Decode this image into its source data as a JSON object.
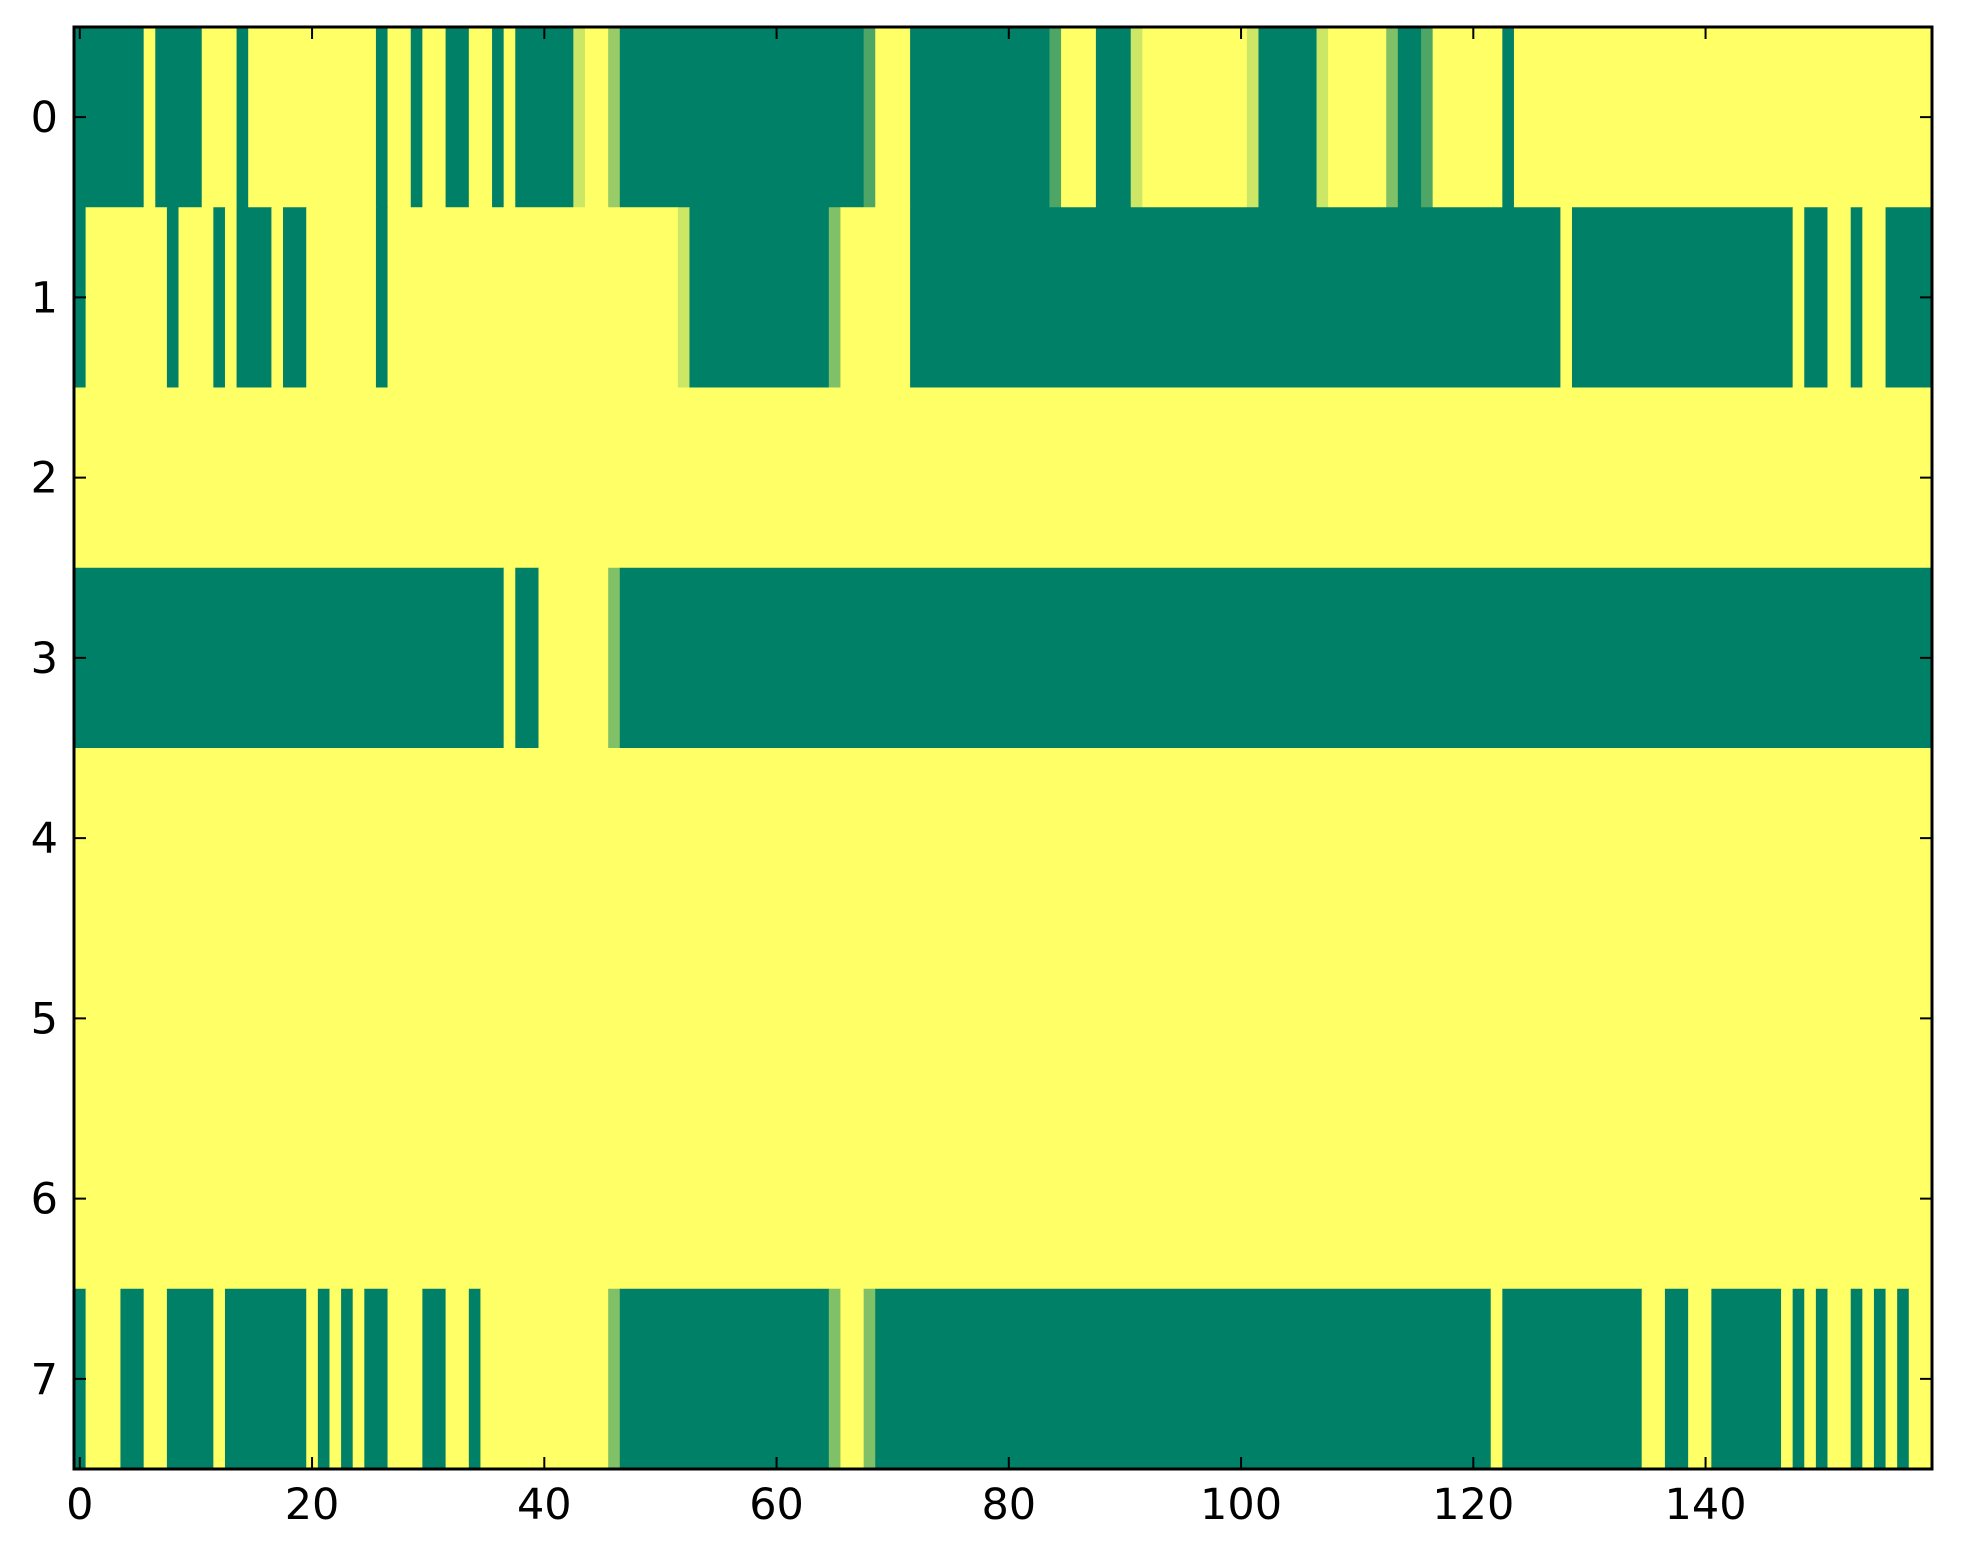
{
  "chart_data": {
    "type": "heatmap",
    "colormap": "summer",
    "colors": {
      "low": "#008066",
      "high": "#ffff66"
    },
    "xlim": [
      -0.5,
      159.5
    ],
    "ylim": [
      7.5,
      -0.5
    ],
    "xticks": [
      0,
      20,
      40,
      60,
      80,
      100,
      120,
      140
    ],
    "yticks": [
      0,
      1,
      2,
      3,
      4,
      5,
      6,
      7
    ],
    "x_tick_labels": [
      "0",
      "20",
      "40",
      "60",
      "80",
      "100",
      "120",
      "140"
    ],
    "y_tick_labels": [
      "0",
      "1",
      "2",
      "3",
      "4",
      "5",
      "6",
      "7"
    ],
    "n_columns": 160,
    "rows": [
      [
        [
          0,
          6,
          0
        ],
        [
          6,
          7,
          1
        ],
        [
          7,
          11,
          0
        ],
        [
          11,
          14,
          1
        ],
        [
          14,
          15,
          0
        ],
        [
          15,
          26,
          1
        ],
        [
          26,
          27,
          0
        ],
        [
          27,
          29,
          1
        ],
        [
          29,
          30,
          0
        ],
        [
          30,
          32,
          1
        ],
        [
          32,
          34,
          0
        ],
        [
          34,
          36,
          1
        ],
        [
          36,
          37,
          0
        ],
        [
          37,
          38,
          1
        ],
        [
          38,
          43,
          0
        ],
        [
          43,
          44,
          0.8
        ],
        [
          44,
          46,
          1
        ],
        [
          46,
          47,
          0.6
        ],
        [
          47,
          68,
          0
        ],
        [
          68,
          69,
          0.3
        ],
        [
          69,
          72,
          1
        ],
        [
          72,
          84,
          0
        ],
        [
          84,
          85,
          0.3
        ],
        [
          85,
          88,
          1
        ],
        [
          88,
          91,
          0
        ],
        [
          91,
          92,
          0.8
        ],
        [
          92,
          101,
          1
        ],
        [
          101,
          102,
          0.8
        ],
        [
          102,
          107,
          0
        ],
        [
          107,
          108,
          0.8
        ],
        [
          108,
          113,
          1
        ],
        [
          113,
          114,
          0.5
        ],
        [
          114,
          116,
          0
        ],
        [
          116,
          117,
          0.3
        ],
        [
          117,
          123,
          1
        ],
        [
          123,
          124,
          0
        ],
        [
          124,
          160,
          1
        ]
      ],
      [
        [
          0,
          1,
          0
        ],
        [
          1,
          8,
          1
        ],
        [
          8,
          9,
          0
        ],
        [
          9,
          12,
          1
        ],
        [
          12,
          13,
          0
        ],
        [
          13,
          14,
          1
        ],
        [
          14,
          17,
          0
        ],
        [
          17,
          18,
          1
        ],
        [
          18,
          20,
          0
        ],
        [
          20,
          26,
          1
        ],
        [
          26,
          27,
          0
        ],
        [
          27,
          52,
          1
        ],
        [
          52,
          53,
          0.8
        ],
        [
          53,
          65,
          0
        ],
        [
          65,
          66,
          0.5
        ],
        [
          66,
          72,
          1
        ],
        [
          72,
          128,
          0
        ],
        [
          128,
          129,
          1
        ],
        [
          129,
          148,
          0
        ],
        [
          148,
          149,
          1
        ],
        [
          149,
          151,
          0
        ],
        [
          151,
          153,
          1
        ],
        [
          153,
          154,
          0
        ],
        [
          154,
          156,
          1
        ],
        [
          156,
          160,
          0
        ]
      ],
      [
        [
          0,
          160,
          1
        ]
      ],
      [
        [
          0,
          37,
          0
        ],
        [
          37,
          38,
          1
        ],
        [
          38,
          40,
          0
        ],
        [
          40,
          46,
          1
        ],
        [
          46,
          47,
          0.5
        ],
        [
          47,
          160,
          0
        ]
      ],
      [
        [
          0,
          160,
          1
        ]
      ],
      [
        [
          0,
          160,
          1
        ]
      ],
      [
        [
          0,
          160,
          1
        ]
      ],
      [
        [
          0,
          1,
          0
        ],
        [
          1,
          4,
          1
        ],
        [
          4,
          6,
          0
        ],
        [
          6,
          8,
          1
        ],
        [
          8,
          12,
          0
        ],
        [
          12,
          13,
          1
        ],
        [
          13,
          20,
          0
        ],
        [
          20,
          21,
          1
        ],
        [
          21,
          22,
          0
        ],
        [
          22,
          23,
          1
        ],
        [
          23,
          24,
          0
        ],
        [
          24,
          25,
          1
        ],
        [
          25,
          27,
          0
        ],
        [
          27,
          30,
          1
        ],
        [
          30,
          32,
          0
        ],
        [
          32,
          34,
          1
        ],
        [
          34,
          35,
          0
        ],
        [
          35,
          46,
          1
        ],
        [
          46,
          47,
          0.5
        ],
        [
          47,
          65,
          0
        ],
        [
          65,
          66,
          0.5
        ],
        [
          66,
          68,
          1
        ],
        [
          68,
          69,
          0.5
        ],
        [
          69,
          122,
          0
        ],
        [
          122,
          123,
          1
        ],
        [
          123,
          135,
          0
        ],
        [
          135,
          137,
          1
        ],
        [
          137,
          139,
          0
        ],
        [
          139,
          141,
          1
        ],
        [
          141,
          147,
          0
        ],
        [
          147,
          148,
          1
        ],
        [
          148,
          149,
          0
        ],
        [
          149,
          150,
          1
        ],
        [
          150,
          151,
          0
        ],
        [
          151,
          153,
          1
        ],
        [
          153,
          154,
          0
        ],
        [
          154,
          155,
          1
        ],
        [
          155,
          156,
          0
        ],
        [
          156,
          157,
          1
        ],
        [
          157,
          158,
          0
        ],
        [
          158,
          160,
          1
        ]
      ]
    ]
  }
}
